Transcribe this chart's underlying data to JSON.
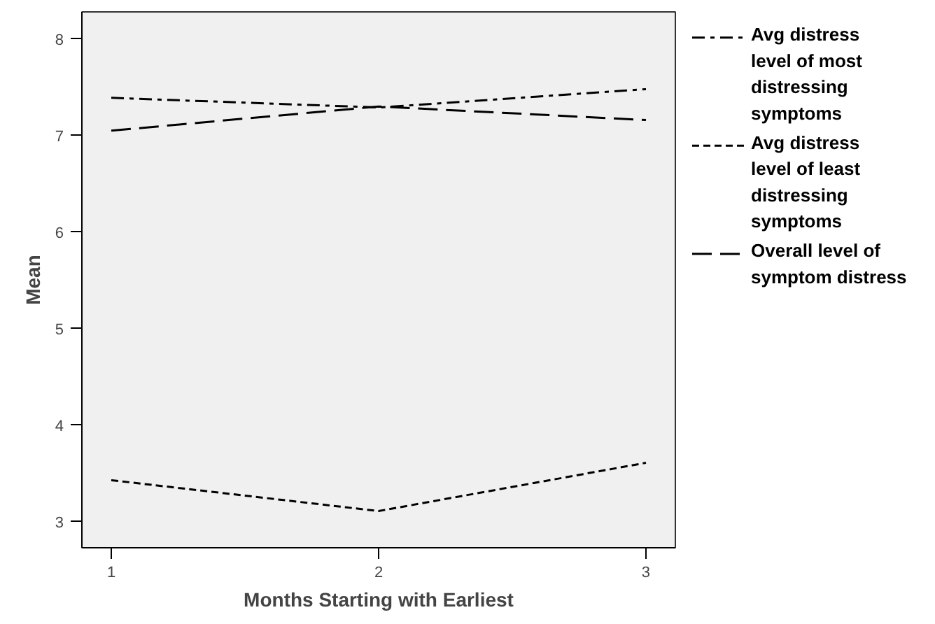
{
  "chart_data": {
    "type": "line",
    "xlabel": "Months Starting with Earliest",
    "ylabel": "Mean",
    "x": [
      1,
      2,
      3
    ],
    "xlim": [
      0.89,
      3.11
    ],
    "xticks": [
      1,
      2,
      3
    ],
    "ylim": [
      2.73,
      8.28
    ],
    "yticks": [
      3,
      4,
      5,
      6,
      7,
      8
    ],
    "grid": false,
    "legend": "right",
    "marker": "none",
    "series": [
      {
        "name": "Avg distress level of most distressing symptoms",
        "color": "#000000",
        "line_style": "dashdot",
        "values": [
          7.39,
          7.29,
          7.48
        ]
      },
      {
        "name": "Avg distress level of least distressing symptoms",
        "color": "#000000",
        "line_style": "dotted",
        "values": [
          3.43,
          3.11,
          3.61
        ]
      },
      {
        "name": "Overall level of symptom distress",
        "color": "#000000",
        "line_style": "dashed",
        "values": [
          7.05,
          7.3,
          7.16
        ]
      }
    ]
  }
}
